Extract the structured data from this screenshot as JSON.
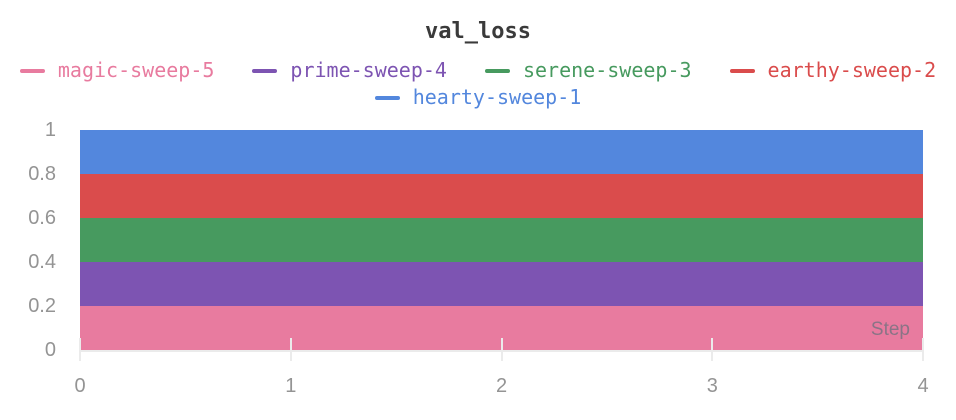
{
  "chart_data": {
    "type": "area",
    "title": "val_loss",
    "xlabel": "Step",
    "ylabel": "",
    "xlim": [
      0,
      4
    ],
    "ylim": [
      0,
      1
    ],
    "x": [
      0,
      1,
      2,
      3,
      4
    ],
    "x_ticks": [
      "0",
      "1",
      "2",
      "3",
      "4"
    ],
    "y_ticks": [
      "0",
      "0.2",
      "0.4",
      "0.6",
      "0.8",
      "1"
    ],
    "grid": false,
    "legend_position": "top",
    "series": [
      {
        "name": "magic-sweep-5",
        "color": "#E87B9F",
        "values": [
          0.2,
          0.2,
          0.2,
          0.2,
          0.2
        ]
      },
      {
        "name": "prime-sweep-4",
        "color": "#7D54B2",
        "values": [
          0.4,
          0.4,
          0.4,
          0.4,
          0.4
        ]
      },
      {
        "name": "serene-sweep-3",
        "color": "#479A5F",
        "values": [
          0.6,
          0.6,
          0.6,
          0.6,
          0.6
        ]
      },
      {
        "name": "earthy-sweep-2",
        "color": "#DA4C4C",
        "values": [
          0.8,
          0.8,
          0.8,
          0.8,
          0.8
        ]
      },
      {
        "name": "hearty-sweep-1",
        "color": "#5387DD",
        "values": [
          1.0,
          1.0,
          1.0,
          1.0,
          1.0
        ]
      }
    ]
  },
  "palette": {
    "background": "#FFFFFF",
    "title_color": "#3A3A3A",
    "axis_label_color": "#949494",
    "tick_mark_color": "#EBEBEB",
    "axis_line_color": "#EBEBEB",
    "step_label_color": "#8A7486"
  }
}
